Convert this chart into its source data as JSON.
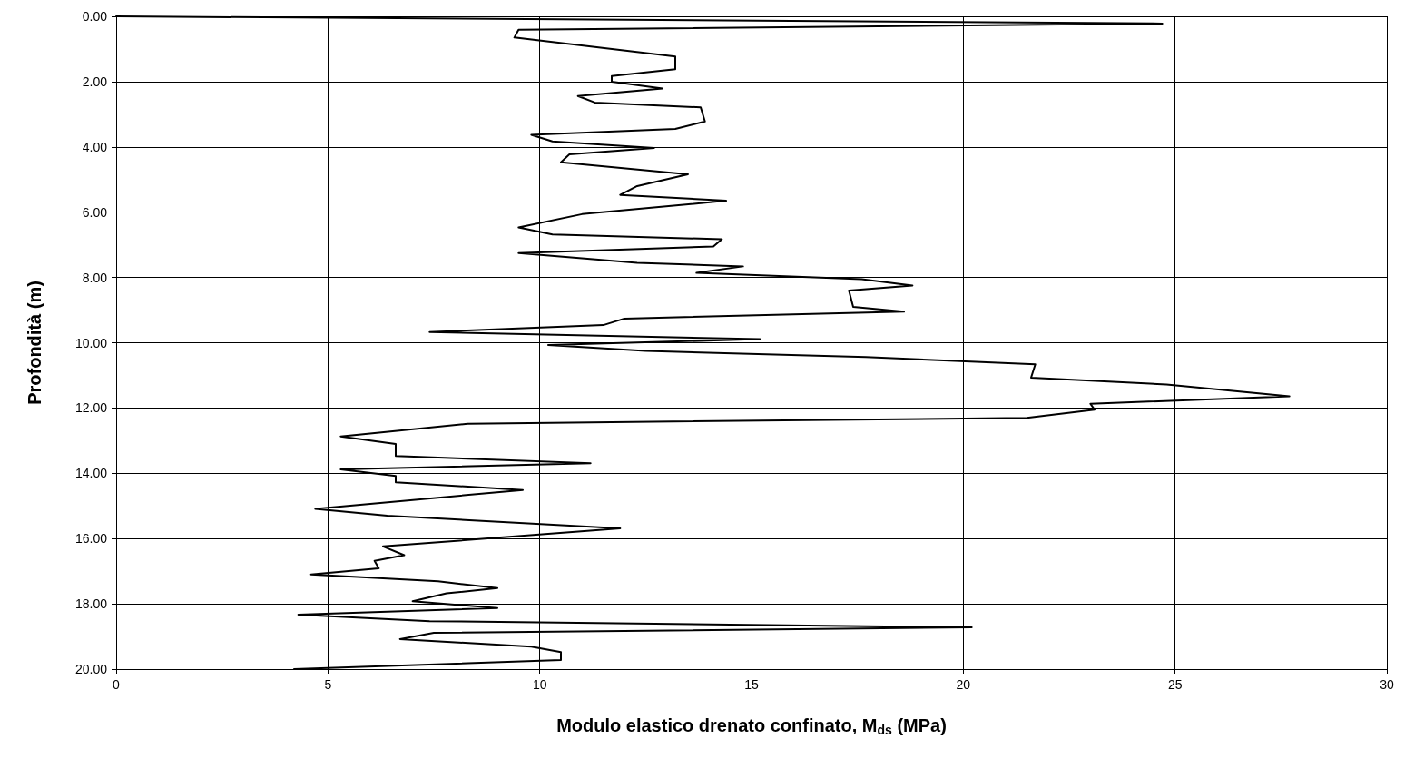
{
  "chart_data": {
    "type": "line",
    "xlabel": "Modulo elastico drenato confinato, M$_{ds}$ (MPa)",
    "ylabel": "Profondità (m)",
    "xlim": [
      0,
      30
    ],
    "xticks": [
      0,
      5,
      10,
      15,
      20,
      25,
      30
    ],
    "ylim": [
      20,
      0
    ],
    "yticks": [
      {
        "value": 0,
        "label": "0.00"
      },
      {
        "value": 2,
        "label": "2.00"
      },
      {
        "value": 4,
        "label": "4.00"
      },
      {
        "value": 6,
        "label": "6.00"
      },
      {
        "value": 8,
        "label": "8.00"
      },
      {
        "value": 10,
        "label": "10.00"
      },
      {
        "value": 12,
        "label": "12.00"
      },
      {
        "value": 14,
        "label": "14.00"
      },
      {
        "value": 16,
        "label": "16.00"
      },
      {
        "value": 18,
        "label": "18.00"
      },
      {
        "value": 20,
        "label": "20.00"
      }
    ],
    "grid": true,
    "marker": "none",
    "line_style": "solid",
    "series": [
      {
        "color": "#000000",
        "x": [
          0,
          24.7,
          9.5,
          9.4,
          13.2,
          13.2,
          11.7,
          11.7,
          12.9,
          10.9,
          11.3,
          13.8,
          13.9,
          13.2,
          9.8,
          10.3,
          12.7,
          10.7,
          10.5,
          13.5,
          12.3,
          11.9,
          14.4,
          11.0,
          9.5,
          10.3,
          14.3,
          14.1,
          9.5,
          12.3,
          14.8,
          13.7,
          17.6,
          18.8,
          17.3,
          17.4,
          18.6,
          12.0,
          11.5,
          7.4,
          15.2,
          10.2,
          12.5,
          17.7,
          21.7,
          21.6,
          24.8,
          27.7,
          23.0,
          23.1,
          21.5,
          8.3,
          5.3,
          6.6,
          6.6,
          11.2,
          5.3,
          6.6,
          6.6,
          9.6,
          4.7,
          6.4,
          11.9,
          6.3,
          6.8,
          6.1,
          6.2,
          4.6,
          7.6,
          9.0,
          7.8,
          7.0,
          9.0,
          4.3,
          7.4,
          20.2,
          7.5,
          6.7,
          9.8,
          10.5,
          10.5,
          4.2
        ],
        "values": [
          0,
          0.22,
          0.41,
          0.65,
          1.23,
          1.62,
          1.83,
          2.0,
          2.21,
          2.44,
          2.64,
          2.79,
          3.22,
          3.45,
          3.63,
          3.83,
          4.03,
          4.23,
          4.47,
          4.84,
          5.2,
          5.47,
          5.65,
          6.06,
          6.47,
          6.68,
          6.83,
          7.05,
          7.25,
          7.55,
          7.66,
          7.86,
          8.05,
          8.25,
          8.4,
          8.9,
          9.05,
          9.26,
          9.46,
          9.67,
          9.89,
          10.07,
          10.25,
          10.44,
          10.66,
          11.07,
          11.28,
          11.64,
          11.87,
          12.05,
          12.3,
          12.48,
          12.87,
          13.1,
          13.47,
          13.69,
          13.88,
          14.08,
          14.28,
          14.51,
          15.09,
          15.3,
          15.69,
          16.24,
          16.51,
          16.68,
          16.91,
          17.1,
          17.31,
          17.52,
          17.68,
          17.92,
          18.13,
          18.33,
          18.53,
          18.72,
          18.89,
          19.08,
          19.31,
          19.48,
          19.72,
          20.0
        ]
      }
    ]
  }
}
